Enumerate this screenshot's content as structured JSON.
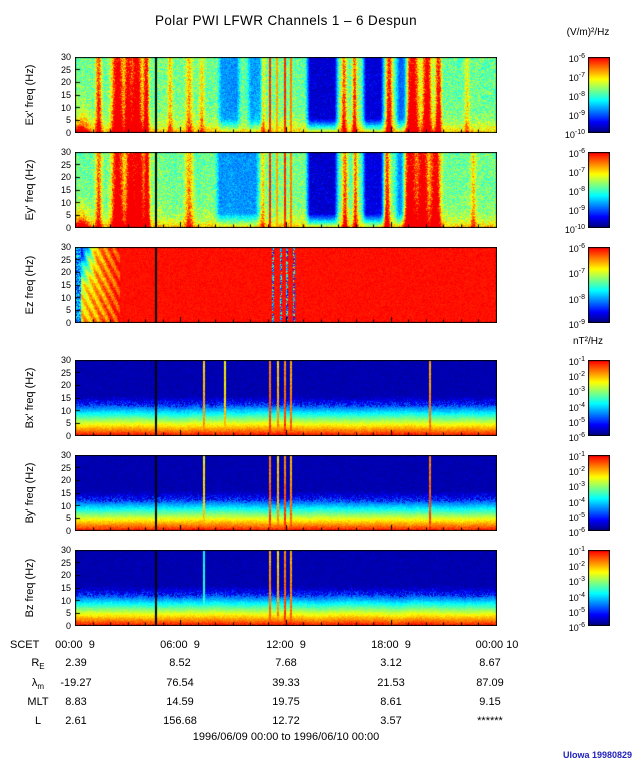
{
  "title": "Polar PWI LFWR Channels 1 – 6 Despun",
  "footer": {
    "date_range": "1996/06/09 00:00 to 1996/06/10 00:00",
    "credit": "UIowa 19980829",
    "credit_color": "#2222bb"
  },
  "chart_data": {
    "type": "heatmap",
    "title": "Polar PWI LFWR Channels 1 – 6 Despun",
    "colormap": "rainbow (dark blue = low power, red = high power)",
    "x_axis": {
      "label": "SCET",
      "ticks": [
        "00:00  9",
        "06:00  9",
        "12:00  9",
        "18:00  9",
        "00:00 10"
      ],
      "range": "1996/06/09 00:00 to 1996/06/10 00:00",
      "data_gap_fraction": 0.19
    },
    "y_axis": {
      "unit": "Hz",
      "range": [
        0,
        30
      ],
      "ticks": [
        0,
        5,
        10,
        15,
        20,
        25,
        30
      ]
    },
    "units": {
      "electric": "(V/m)²/Hz",
      "magnetic": "nT²/Hz"
    },
    "panels": [
      {
        "id": "ex",
        "ylabel": "Ex' freq (Hz)",
        "cbar_unit": "(V/m)²/Hz",
        "cbar_exponents": [
          "-6",
          "-7",
          "-8",
          "-9",
          "-10"
        ],
        "texture": "e-field",
        "seed": 101,
        "description": "green/cyan background, dark-blue quiet intervals, intense red bursts near 02-04h and 19-21h, narrow interference spikes near 11-12h",
        "bursts": [
          [
            0.055,
            0.007,
            0.7
          ],
          [
            0.1,
            0.013,
            1.05
          ],
          [
            0.125,
            0.008,
            0.9
          ],
          [
            0.145,
            0.012,
            1.05
          ],
          [
            0.168,
            0.006,
            0.9
          ],
          [
            0.225,
            0.006,
            0.35
          ],
          [
            0.27,
            0.008,
            0.4
          ],
          [
            0.3,
            0.006,
            0.35
          ],
          [
            0.445,
            0.005,
            0.4
          ],
          [
            0.638,
            0.006,
            0.6
          ],
          [
            0.663,
            0.005,
            0.65
          ],
          [
            0.745,
            0.007,
            0.8
          ],
          [
            0.8,
            0.014,
            1.05
          ],
          [
            0.835,
            0.01,
            1.0
          ],
          [
            0.862,
            0.007,
            0.85
          ],
          [
            0.93,
            0.006,
            0.3
          ]
        ],
        "quiets": [
          [
            0.335,
            0.395,
            0.5
          ],
          [
            0.405,
            0.45,
            0.45
          ],
          [
            0.545,
            0.627,
            0.92
          ],
          [
            0.678,
            0.737,
            0.9
          ],
          [
            0.757,
            0.792,
            0.6
          ]
        ],
        "spikes": [
          [
            0.462,
            0.95
          ],
          [
            0.478,
            0.8
          ],
          [
            0.497,
            0.95
          ],
          [
            0.512,
            0.85
          ]
        ],
        "gap": 0.19
      },
      {
        "id": "ey",
        "ylabel": "Ey' freq (Hz)",
        "cbar_unit": "(V/m)²/Hz",
        "cbar_exponents": [
          "-6",
          "-7",
          "-8",
          "-9",
          "-10"
        ],
        "texture": "e-field",
        "seed": 202,
        "description": "similar to Ex' with broader red burst region near 19-21h",
        "bursts": [
          [
            0.055,
            0.007,
            0.6
          ],
          [
            0.1,
            0.013,
            1.05
          ],
          [
            0.13,
            0.01,
            1.0
          ],
          [
            0.15,
            0.012,
            1.05
          ],
          [
            0.17,
            0.006,
            0.9
          ],
          [
            0.27,
            0.01,
            0.45
          ],
          [
            0.445,
            0.005,
            0.35
          ],
          [
            0.64,
            0.006,
            0.65
          ],
          [
            0.665,
            0.005,
            0.6
          ],
          [
            0.74,
            0.007,
            0.7
          ],
          [
            0.795,
            0.015,
            1.05
          ],
          [
            0.825,
            0.012,
            1.05
          ],
          [
            0.855,
            0.012,
            1.0
          ],
          [
            0.945,
            0.006,
            0.35
          ]
        ],
        "quiets": [
          [
            0.33,
            0.44,
            0.5
          ],
          [
            0.545,
            0.627,
            0.92
          ],
          [
            0.678,
            0.737,
            0.88
          ],
          [
            0.757,
            0.787,
            0.55
          ]
        ],
        "spikes": [
          [
            0.462,
            0.95
          ],
          [
            0.478,
            0.8
          ],
          [
            0.497,
            0.95
          ],
          [
            0.512,
            0.85
          ]
        ],
        "gap": 0.19
      },
      {
        "id": "ez",
        "ylabel": "Ez freq (Hz)",
        "cbar_unit": "(V/m)²/Hz",
        "cbar_exponents": [
          "-6",
          "-7",
          "-8",
          "-9"
        ],
        "texture": "saturated",
        "seed": 303,
        "description": "saturated red across nearly the whole day; banded yellow/orange structure with dark upper-left wedge during first ~2.5 h; dark interference lines near noon",
        "darkspikes": [
          0.468,
          0.488,
          0.503,
          0.518
        ],
        "gap": 0.19
      },
      {
        "id": "bx",
        "ylabel": "Bx' freq (Hz)",
        "cbar_unit": "nT²/Hz",
        "cbar_exponents": [
          "-1",
          "-2",
          "-3",
          "-4",
          "-5",
          "-6"
        ],
        "texture": "b-field",
        "seed": 404,
        "description": "red band at lowest frequencies grading through yellow/green/cyan to speckled blue above ~12 Hz; narrow full-height interference spikes",
        "spikes": [
          [
            0.306,
            0.85
          ],
          [
            0.356,
            0.8
          ],
          [
            0.462,
            0.95
          ],
          [
            0.48,
            0.85
          ],
          [
            0.498,
            0.95
          ],
          [
            0.513,
            0.9
          ],
          [
            0.843,
            0.9
          ]
        ],
        "gap": 0.19
      },
      {
        "id": "by",
        "ylabel": "By' freq (Hz)",
        "cbar_unit": "nT²/Hz",
        "cbar_exponents": [
          "-1",
          "-2",
          "-3",
          "-4",
          "-5",
          "-6"
        ],
        "texture": "b-field",
        "seed": 505,
        "description": "same vertical power-law gradient as Bx' with interference spikes",
        "spikes": [
          [
            0.306,
            0.8
          ],
          [
            0.462,
            0.95
          ],
          [
            0.48,
            0.85
          ],
          [
            0.498,
            0.95
          ],
          [
            0.513,
            0.9
          ],
          [
            0.843,
            0.95
          ]
        ],
        "gap": 0.19
      },
      {
        "id": "bz",
        "ylabel": "Bz freq (Hz)",
        "cbar_unit": "nT²/Hz",
        "cbar_exponents": [
          "-1",
          "-2",
          "-3",
          "-4",
          "-5",
          "-6"
        ],
        "texture": "b-field",
        "seed": 606,
        "description": "same vertical power-law gradient with noon interference spikes",
        "spikes": [
          [
            0.306,
            0.5
          ],
          [
            0.462,
            0.9
          ],
          [
            0.48,
            0.85
          ],
          [
            0.498,
            0.95
          ],
          [
            0.513,
            0.9
          ]
        ],
        "gap": 0.19
      }
    ],
    "ephemeris": {
      "rows": [
        {
          "label_main": "R",
          "label_sub": "E",
          "values": [
            "2.39",
            "8.52",
            "7.68",
            "3.12",
            "8.67"
          ]
        },
        {
          "label_main": "λ",
          "label_sub": "m",
          "values": [
            "-19.27",
            "76.54",
            "39.33",
            "21.53",
            "87.09"
          ]
        },
        {
          "label_main": "MLT",
          "label_sub": "",
          "values": [
            "8.83",
            "14.59",
            "19.75",
            "8.61",
            "9.15"
          ]
        },
        {
          "label_main": "L",
          "label_sub": "",
          "values": [
            "2.61",
            "156.68",
            "12.72",
            "3.57",
            "******"
          ]
        }
      ]
    }
  }
}
